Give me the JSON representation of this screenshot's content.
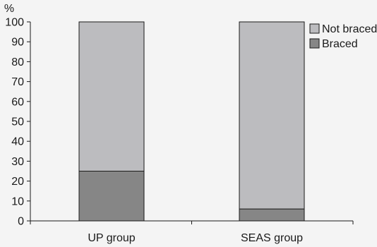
{
  "colors": {
    "background": "#f4f4f4",
    "braced": "#868686",
    "not_braced": "#bcbcbf",
    "axis": "#1a1a1a"
  },
  "chart_data": {
    "type": "bar",
    "stacked": true,
    "categories": [
      "UP group",
      "SEAS group"
    ],
    "series": [
      {
        "name": "Braced",
        "values": [
          25,
          6
        ],
        "color": "#868686"
      },
      {
        "name": "Not braced",
        "values": [
          75,
          94
        ],
        "color": "#bcbcbf"
      }
    ],
    "ylabel": "%",
    "ylim": [
      0,
      100
    ],
    "yticks": [
      0,
      10,
      20,
      30,
      40,
      50,
      60,
      70,
      80,
      90,
      100
    ],
    "legend": {
      "placement": "top-right",
      "entries": [
        "Not braced",
        "Braced"
      ]
    },
    "grid": false
  }
}
